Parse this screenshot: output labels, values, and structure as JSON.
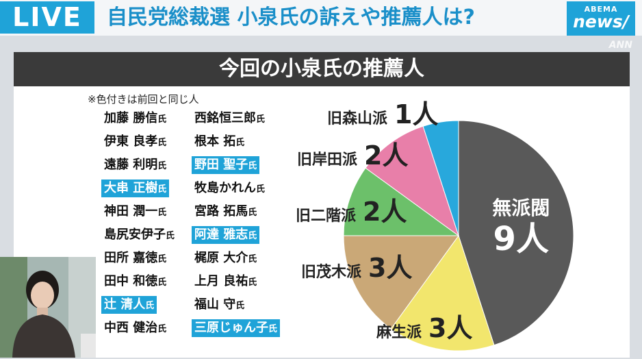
{
  "header": {
    "live": "LIVE",
    "headline": "自民党総裁選 小泉氏の訴えや推薦人は?",
    "logo_top": "ABEMA",
    "logo_bottom": "news/",
    "watermark": "ANN"
  },
  "card": {
    "title": "今回の小泉氏の推薦人",
    "note": "※色付きは前回と同じ人",
    "names": [
      {
        "text": "加藤 勝信",
        "suffix": "氏",
        "highlight": false
      },
      {
        "text": "西銘恒三郎",
        "suffix": "氏",
        "highlight": false
      },
      {
        "text": "伊東 良孝",
        "suffix": "氏",
        "highlight": false
      },
      {
        "text": "根本  拓",
        "suffix": "氏",
        "highlight": false
      },
      {
        "text": "遠藤 利明",
        "suffix": "氏",
        "highlight": false
      },
      {
        "text": "野田 聖子",
        "suffix": "氏",
        "highlight": true
      },
      {
        "text": "大串 正樹",
        "suffix": "氏",
        "highlight": true
      },
      {
        "text": "牧島かれん",
        "suffix": "氏",
        "highlight": false
      },
      {
        "text": "神田 潤一",
        "suffix": "氏",
        "highlight": false
      },
      {
        "text": "宮路 拓馬",
        "suffix": "氏",
        "highlight": false
      },
      {
        "text": "島尻安伊子",
        "suffix": "氏",
        "highlight": false
      },
      {
        "text": "阿達 雅志",
        "suffix": "氏",
        "highlight": true
      },
      {
        "text": "田所 嘉徳",
        "suffix": "氏",
        "highlight": false
      },
      {
        "text": "梶原 大介",
        "suffix": "氏",
        "highlight": false
      },
      {
        "text": "田中 和徳",
        "suffix": "氏",
        "highlight": false
      },
      {
        "text": "上月 良祐",
        "suffix": "氏",
        "highlight": false
      },
      {
        "text": "辻  清人",
        "suffix": "氏",
        "highlight": true
      },
      {
        "text": "福山  守",
        "suffix": "氏",
        "highlight": false
      },
      {
        "text": "中西 健治",
        "suffix": "氏",
        "highlight": false
      },
      {
        "text": "三原じゅん子",
        "suffix": "氏",
        "highlight": true
      }
    ],
    "highlight_color": "#1fa3d8"
  },
  "chart_data": {
    "type": "pie",
    "title": "",
    "unit": "人",
    "slices": [
      {
        "label": "無派閥",
        "value": 9,
        "display": "9人",
        "color": "#595959"
      },
      {
        "label": "麻生派",
        "value": 3,
        "display": "3人",
        "color": "#f2e66d"
      },
      {
        "label": "旧茂木派",
        "value": 3,
        "display": "3人",
        "color": "#caa877"
      },
      {
        "label": "旧二階派",
        "value": 2,
        "display": "2人",
        "color": "#6cc06a"
      },
      {
        "label": "旧岸田派",
        "value": 2,
        "display": "2人",
        "color": "#e87fa9"
      },
      {
        "label": "旧森山派",
        "value": 1,
        "display": "1人",
        "color": "#28a8dc"
      }
    ]
  }
}
